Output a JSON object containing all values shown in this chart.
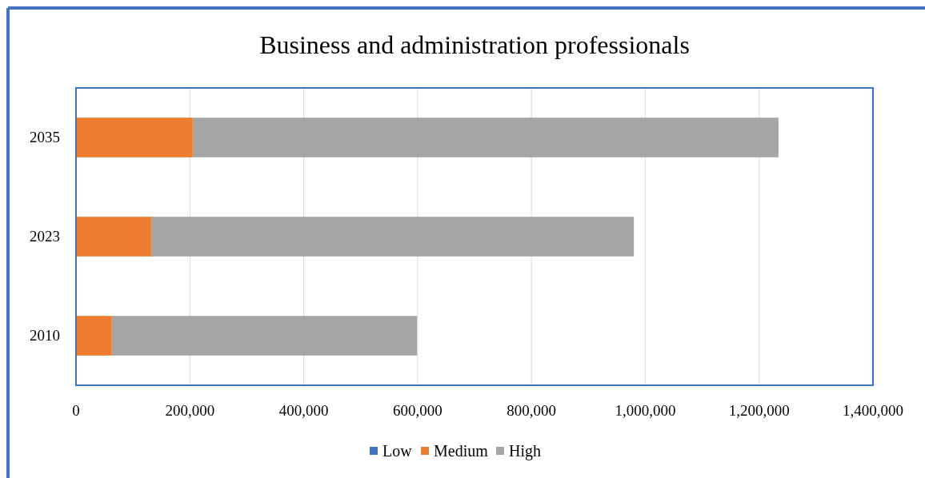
{
  "chart_data": {
    "type": "bar",
    "title": "Business and administration professionals",
    "orientation": "horizontal",
    "stacked": true,
    "categories": [
      "2035",
      "2023",
      "2010"
    ],
    "series": [
      {
        "name": "Low",
        "color": "#4472c4",
        "values": [
          0,
          0,
          0
        ]
      },
      {
        "name": "Medium",
        "color": "#ed7d31",
        "values": [
          205000,
          132000,
          63000
        ]
      },
      {
        "name": "High",
        "color": "#a5a5a5",
        "values": [
          1029000,
          848000,
          536000
        ]
      }
    ],
    "xlim": [
      0,
      1400000
    ],
    "xticks": [
      {
        "value": 0,
        "label": "0"
      },
      {
        "value": 200000,
        "label": "200,000"
      },
      {
        "value": 400000,
        "label": "400,000"
      },
      {
        "value": 600000,
        "label": "600,000"
      },
      {
        "value": 800000,
        "label": "800,000"
      },
      {
        "value": 1000000,
        "label": "1,000,000"
      },
      {
        "value": 1200000,
        "label": "1,200,000"
      },
      {
        "value": 1400000,
        "label": "1,400,000"
      }
    ],
    "grid": "x",
    "legend": "bottom"
  }
}
